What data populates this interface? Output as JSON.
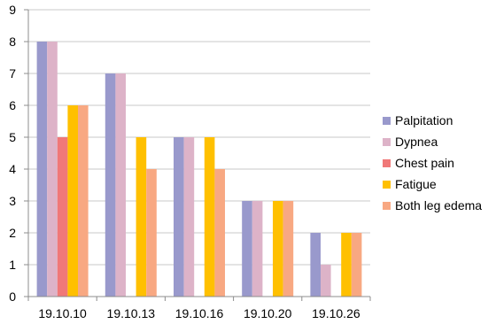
{
  "chart_data": {
    "type": "bar",
    "title": "",
    "xlabel": "",
    "ylabel": "",
    "categories": [
      "19.10.10",
      "19.10.13",
      "19.10.16",
      "19.10.20",
      "19.10.26"
    ],
    "ylim": [
      0,
      9
    ],
    "yticks": [
      0,
      1,
      2,
      3,
      4,
      5,
      6,
      7,
      8,
      9
    ],
    "grid": true,
    "legend_position": "right",
    "series": [
      {
        "name": "Palpitation",
        "color": "#9999cc",
        "values": [
          8,
          7,
          5,
          3,
          2
        ]
      },
      {
        "name": "Dypnea",
        "color": "#ddb3c8",
        "values": [
          8,
          7,
          5,
          3,
          1
        ]
      },
      {
        "name": "Chest pain",
        "color": "#f07878",
        "values": [
          5,
          0,
          0,
          0,
          0
        ]
      },
      {
        "name": "Fatigue",
        "color": "#ffc000",
        "values": [
          6,
          5,
          5,
          3,
          2
        ]
      },
      {
        "name": "Both leg edema",
        "color": "#f8a882",
        "values": [
          6,
          4,
          4,
          3,
          2
        ]
      }
    ]
  }
}
